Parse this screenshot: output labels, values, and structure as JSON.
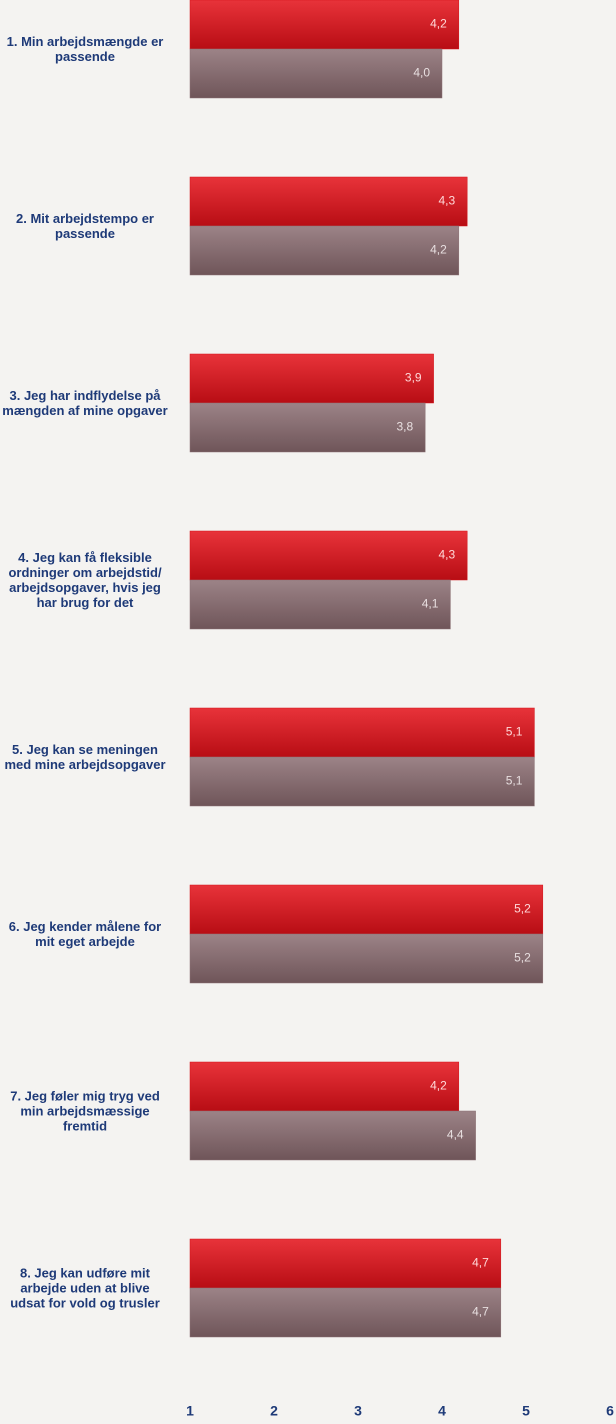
{
  "chart_data": {
    "type": "bar",
    "orientation": "horizontal",
    "categories": [
      "1. Min arbejdsmængde er passende",
      "2. Mit arbejdstempo er passende",
      "3. Jeg har indflydelse på mængden af mine opgaver",
      "4. Jeg kan få fleksible ordninger om arbejdstid/ arbejdsopgaver, hvis jeg har brug for det",
      "5. Jeg kan se meningen med mine arbejdsopgaver",
      "6. Jeg kender målene for mit eget arbejde",
      "7. Jeg føler mig tryg ved min arbejdsmæssige fremtid",
      "8. Jeg kan udføre mit arbejde uden at blive udsat for vold og trusler"
    ],
    "series": [
      {
        "color": "#d3141b",
        "values": [
          4.2,
          4.3,
          3.9,
          4.3,
          5.1,
          5.2,
          4.2,
          4.7
        ],
        "value_labels": [
          "4,2",
          "4,3",
          "3,9",
          "4,3",
          "5,1",
          "5,2",
          "4,2",
          "4,7"
        ]
      },
      {
        "color": "#8c7276",
        "values": [
          4.0,
          4.2,
          3.8,
          4.1,
          5.1,
          5.2,
          4.4,
          4.7
        ],
        "value_labels": [
          "4,0",
          "4,2",
          "3,8",
          "4,1",
          "5,1",
          "5,2",
          "4,4",
          "4,7"
        ]
      }
    ],
    "xlim": [
      1,
      6
    ],
    "xticks": [
      1,
      2,
      3,
      4,
      5,
      6
    ]
  }
}
